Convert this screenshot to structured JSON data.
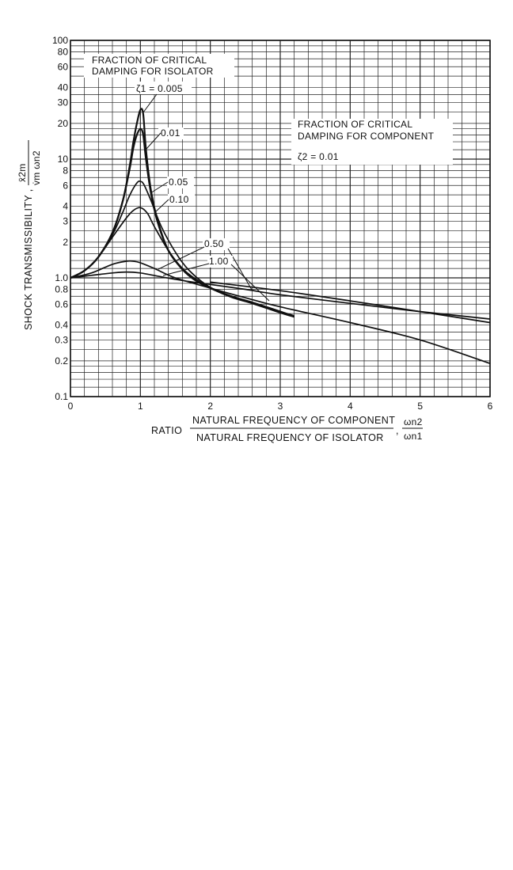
{
  "chart_data": {
    "type": "line",
    "title": "",
    "xlabel": {
      "prefix": "RATIO",
      "numerator": "NATURAL FREQUENCY OF COMPONENT",
      "denominator": "NATURAL FREQUENCY OF ISOLATOR",
      "sep": ",",
      "sym_num": "ωn2",
      "sym_den": "ωn1"
    },
    "ylabel": {
      "text": "SHOCK TRANSMISSIBILITY ,",
      "sym_num": "x̄2m",
      "sym_den": "v̇m ωn2"
    },
    "xlim": [
      0,
      6
    ],
    "ylim": [
      0.1,
      100
    ],
    "y_scale": "log",
    "grid": true,
    "x_ticks": [
      "0",
      "1",
      "2",
      "3",
      "4",
      "5",
      "6"
    ],
    "y_ticks": [
      {
        "v": 0.1,
        "label": "0.1"
      },
      {
        "v": 0.2,
        "label": "0.2"
      },
      {
        "v": 0.3,
        "label": "0.3"
      },
      {
        "v": 0.4,
        "label": "0.4"
      },
      {
        "v": 0.6,
        "label": "0.6"
      },
      {
        "v": 0.8,
        "label": "0.8"
      },
      {
        "v": 1,
        "label": "1.0"
      },
      {
        "v": 2,
        "label": "2"
      },
      {
        "v": 3,
        "label": "3"
      },
      {
        "v": 4,
        "label": "4"
      },
      {
        "v": 6,
        "label": "6"
      },
      {
        "v": 8,
        "label": "8"
      },
      {
        "v": 10,
        "label": "10"
      },
      {
        "v": 20,
        "label": "20"
      },
      {
        "v": 30,
        "label": "30"
      },
      {
        "v": 40,
        "label": "40"
      },
      {
        "v": 60,
        "label": "60"
      },
      {
        "v": 80,
        "label": "80"
      },
      {
        "v": 100,
        "label": "100"
      }
    ],
    "y_grid": [
      0.1,
      0.12,
      0.14,
      0.16,
      0.18,
      0.2,
      0.25,
      0.3,
      0.35,
      0.4,
      0.5,
      0.6,
      0.7,
      0.8,
      0.9,
      1,
      1.2,
      1.4,
      1.6,
      1.8,
      2,
      2.5,
      3,
      3.5,
      4,
      5,
      6,
      7,
      8,
      9,
      10,
      12,
      14,
      16,
      18,
      20,
      25,
      30,
      35,
      40,
      50,
      60,
      70,
      80,
      90,
      100
    ],
    "x_grid_step": 0.2,
    "isolator_note": [
      "FRACTION OF CRITICAL",
      "DAMPING FOR ISOLATOR"
    ],
    "component_note": [
      "FRACTION OF CRITICAL",
      "DAMPING FOR COMPONENT"
    ],
    "component_zeta": "ζ2 = 0.01",
    "series": [
      {
        "name": "ζ1 = 0.005",
        "x": [
          0,
          0.2,
          0.4,
          0.6,
          0.75,
          0.85,
          0.9,
          0.95,
          1.0,
          1.04,
          1.08,
          1.15,
          1.25,
          1.4,
          1.6,
          1.8,
          2.0,
          2.3,
          2.6,
          3.0,
          3.2
        ],
        "values": [
          1.0,
          1.15,
          1.5,
          2.4,
          4.5,
          9.0,
          14.0,
          20.0,
          26.0,
          24.0,
          12.0,
          5.5,
          3.0,
          1.7,
          1.2,
          0.95,
          0.82,
          0.7,
          0.62,
          0.52,
          0.47
        ]
      },
      {
        "name": "0.01",
        "x": [
          0,
          0.2,
          0.4,
          0.6,
          0.75,
          0.85,
          0.9,
          0.95,
          1.0,
          1.04,
          1.08,
          1.15,
          1.25,
          1.4,
          1.6,
          1.8,
          2.0,
          2.3,
          2.6,
          3.0,
          3.2
        ],
        "values": [
          1.0,
          1.15,
          1.5,
          2.4,
          4.5,
          8.5,
          12.5,
          16.0,
          18.0,
          16.0,
          10.0,
          5.2,
          2.9,
          1.7,
          1.18,
          0.94,
          0.82,
          0.69,
          0.61,
          0.51,
          0.47
        ]
      },
      {
        "name": "0.05",
        "x": [
          0,
          0.2,
          0.4,
          0.6,
          0.75,
          0.85,
          0.95,
          1.0,
          1.05,
          1.15,
          1.3,
          1.5,
          1.7,
          2.0,
          2.3,
          2.6,
          3.0,
          3.2
        ],
        "values": [
          1.0,
          1.15,
          1.5,
          2.3,
          3.6,
          5.0,
          6.3,
          6.5,
          6.1,
          4.5,
          2.7,
          1.65,
          1.15,
          0.83,
          0.7,
          0.62,
          0.52,
          0.47
        ]
      },
      {
        "name": "0.10",
        "x": [
          0,
          0.2,
          0.4,
          0.6,
          0.8,
          0.9,
          1.0,
          1.1,
          1.2,
          1.4,
          1.6,
          1.8,
          2.0,
          2.3,
          2.6,
          3.0,
          3.2
        ],
        "values": [
          1.0,
          1.15,
          1.5,
          2.2,
          3.2,
          3.7,
          3.9,
          3.5,
          2.7,
          1.7,
          1.2,
          0.97,
          0.83,
          0.7,
          0.62,
          0.52,
          0.48
        ]
      },
      {
        "name": "0.50",
        "x": [
          0,
          0.3,
          0.6,
          0.8,
          0.9,
          1.0,
          1.2,
          1.5,
          2.0,
          2.5,
          3.0,
          4.0,
          5.0,
          6.0
        ],
        "values": [
          1.0,
          1.1,
          1.3,
          1.38,
          1.38,
          1.34,
          1.2,
          1.0,
          0.82,
          0.68,
          0.57,
          0.42,
          0.3,
          0.19
        ]
      },
      {
        "name": "1.00",
        "x": [
          0,
          0.3,
          0.6,
          0.8,
          1.0,
          1.3,
          1.6,
          2.0,
          2.5,
          3.0,
          4.0,
          5.0,
          6.0
        ],
        "values": [
          1.0,
          1.05,
          1.1,
          1.12,
          1.1,
          1.02,
          0.95,
          0.88,
          0.8,
          0.72,
          0.61,
          0.52,
          0.45
        ]
      },
      {
        "name": "",
        "x": [
          2.0,
          3.0,
          4.0,
          5.0,
          6.0
        ],
        "values": [
          0.92,
          0.78,
          0.64,
          0.52,
          0.42
        ]
      }
    ]
  }
}
